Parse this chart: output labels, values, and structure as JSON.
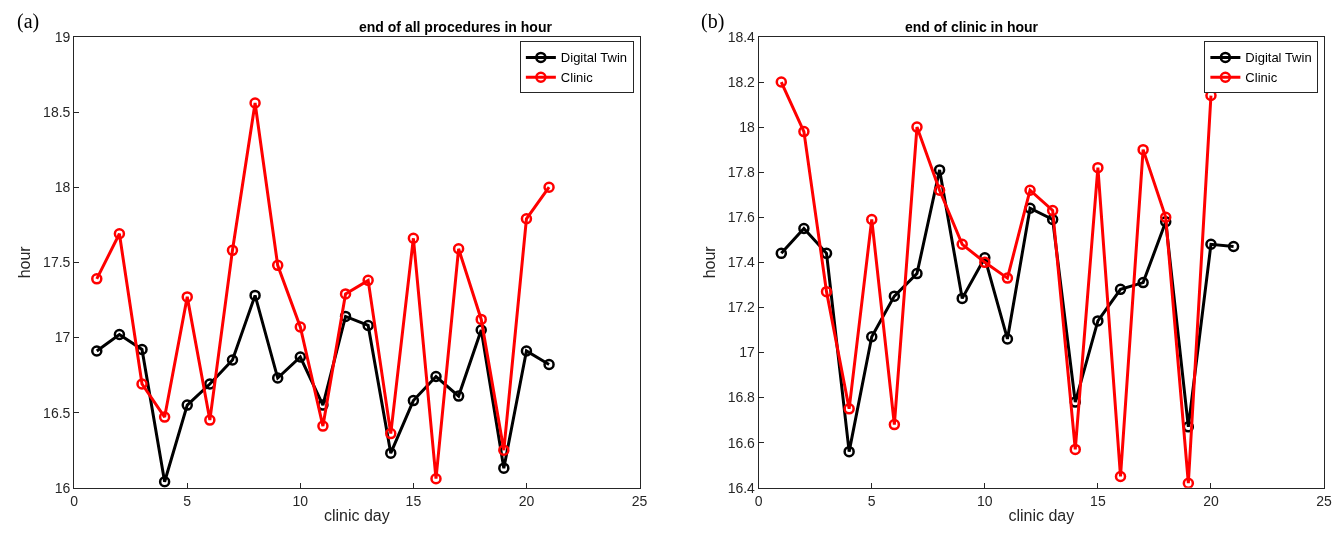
{
  "chart_data": [
    {
      "type": "line",
      "title": "end of all procedures in hour",
      "xlabel": "clinic day",
      "ylabel": "hour",
      "annotations": [
        "(a)"
      ],
      "xlim": [
        0,
        25
      ],
      "xticks": [
        0,
        5,
        10,
        15,
        20,
        25
      ],
      "ylim": [
        16,
        19
      ],
      "yticks": [
        16,
        16.5,
        17,
        17.5,
        18,
        18.5,
        19
      ],
      "x": [
        1,
        2,
        3,
        4,
        5,
        6,
        7,
        8,
        9,
        10,
        11,
        12,
        13,
        14,
        15,
        16,
        17,
        18,
        19,
        20,
        21
      ],
      "series": [
        {
          "name": "Digital Twin",
          "color": "#000000",
          "values": [
            16.91,
            17.02,
            16.92,
            16.04,
            16.55,
            16.69,
            16.85,
            17.28,
            16.73,
            16.87,
            16.55,
            17.14,
            17.08,
            16.23,
            16.58,
            16.74,
            16.61,
            17.05,
            16.13,
            16.91,
            16.82
          ]
        },
        {
          "name": "Clinic",
          "color": "#ff0000",
          "values": [
            17.39,
            17.69,
            16.69,
            16.47,
            17.27,
            16.45,
            17.58,
            18.56,
            17.48,
            17.07,
            16.41,
            17.29,
            17.38,
            16.36,
            17.66,
            16.06,
            17.59,
            17.12,
            16.25,
            17.79,
            18.0
          ]
        }
      ],
      "legend": "top right",
      "marker": "circle",
      "line_style": "solid"
    },
    {
      "type": "line",
      "title": "end of clinic in hour",
      "xlabel": "clinic day",
      "ylabel": "hour",
      "annotations": [
        "(b)"
      ],
      "xlim": [
        0,
        25
      ],
      "xticks": [
        0,
        5,
        10,
        15,
        20,
        25
      ],
      "ylim": [
        16.4,
        18.4
      ],
      "yticks": [
        16.4,
        16.6,
        16.8,
        17,
        17.2,
        17.4,
        17.6,
        17.8,
        18,
        18.2,
        18.4
      ],
      "x": [
        1,
        2,
        3,
        4,
        5,
        6,
        7,
        8,
        9,
        10,
        11,
        12,
        13,
        14,
        15,
        16,
        17,
        18,
        19,
        20,
        21
      ],
      "series": [
        {
          "name": "Digital Twin",
          "color": "#000000",
          "values": [
            17.44,
            17.55,
            17.44,
            16.56,
            17.07,
            17.25,
            17.35,
            17.81,
            17.24,
            17.42,
            17.06,
            17.64,
            17.59,
            16.78,
            17.14,
            17.28,
            17.31,
            17.58,
            16.67,
            17.48,
            17.47
          ]
        },
        {
          "name": "Clinic",
          "color": "#ff0000",
          "values": [
            18.2,
            17.98,
            17.27,
            16.75,
            17.59,
            16.68,
            18.0,
            17.72,
            17.48,
            17.4,
            17.33,
            17.72,
            17.63,
            16.57,
            17.82,
            16.45,
            17.9,
            17.6,
            16.42,
            18.14,
            null
          ]
        }
      ],
      "legend": "top right",
      "marker": "circle",
      "line_style": "solid"
    }
  ]
}
